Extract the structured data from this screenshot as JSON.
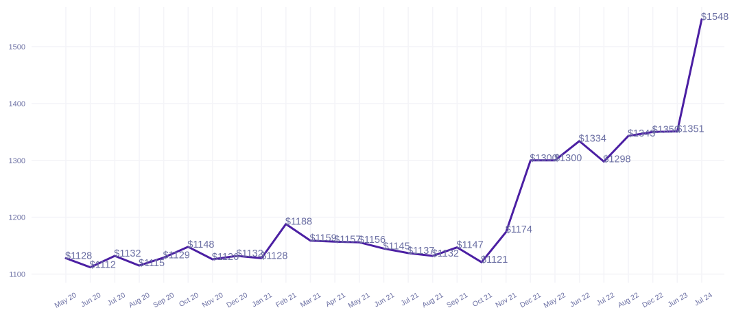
{
  "chart_data": {
    "type": "line",
    "title": "",
    "xlabel": "",
    "ylabel": "",
    "grid": true,
    "legend": "none",
    "ylim": [
      1085,
      1570
    ],
    "yticks": [
      1100,
      1200,
      1300,
      1400,
      1500
    ],
    "categories": [
      "May 20",
      "Jun 20",
      "Jul 20",
      "Aug 20",
      "Sep 20",
      "Oct 20",
      "Nov 20",
      "Dec 20",
      "Jan 21",
      "Feb 21",
      "Mar 21",
      "Apr 21",
      "May 21",
      "Jun 21",
      "Jul 21",
      "Aug 21",
      "Sep 21",
      "Oct 21",
      "Nov 21",
      "Dec 21",
      "May 22",
      "Jun 22",
      "Jul 22",
      "Aug 22",
      "Dec 22",
      "Jun 23",
      "Jul 24"
    ],
    "series": [
      {
        "values": [
          1128,
          1112,
          1132,
          1115,
          1129,
          1148,
          1126,
          1132,
          1128,
          1188,
          1159,
          1157,
          1156,
          1145,
          1137,
          1132,
          1147,
          1121,
          1174,
          1300,
          1300,
          1334,
          1298,
          1343,
          1350,
          1351,
          1548
        ],
        "labels": [
          "$1128",
          "$1112",
          "$1132",
          "$1115",
          "$1129",
          "$1148",
          "$1126",
          "$1132",
          "$1128",
          "$1188",
          "$1159",
          "$1157",
          "$1156",
          "$1145",
          "$1137",
          "$1132",
          "$1147",
          "$1121",
          "$1174",
          "$1300",
          "$1300",
          "$1334",
          "$1298",
          "$1343",
          "$1350",
          "$1351",
          "$1548"
        ],
        "color": "#4b1fa3"
      }
    ]
  },
  "colors": {
    "line": "#4b1fa3",
    "text": "#6b6fa3",
    "grid": "#f4f4f8"
  }
}
